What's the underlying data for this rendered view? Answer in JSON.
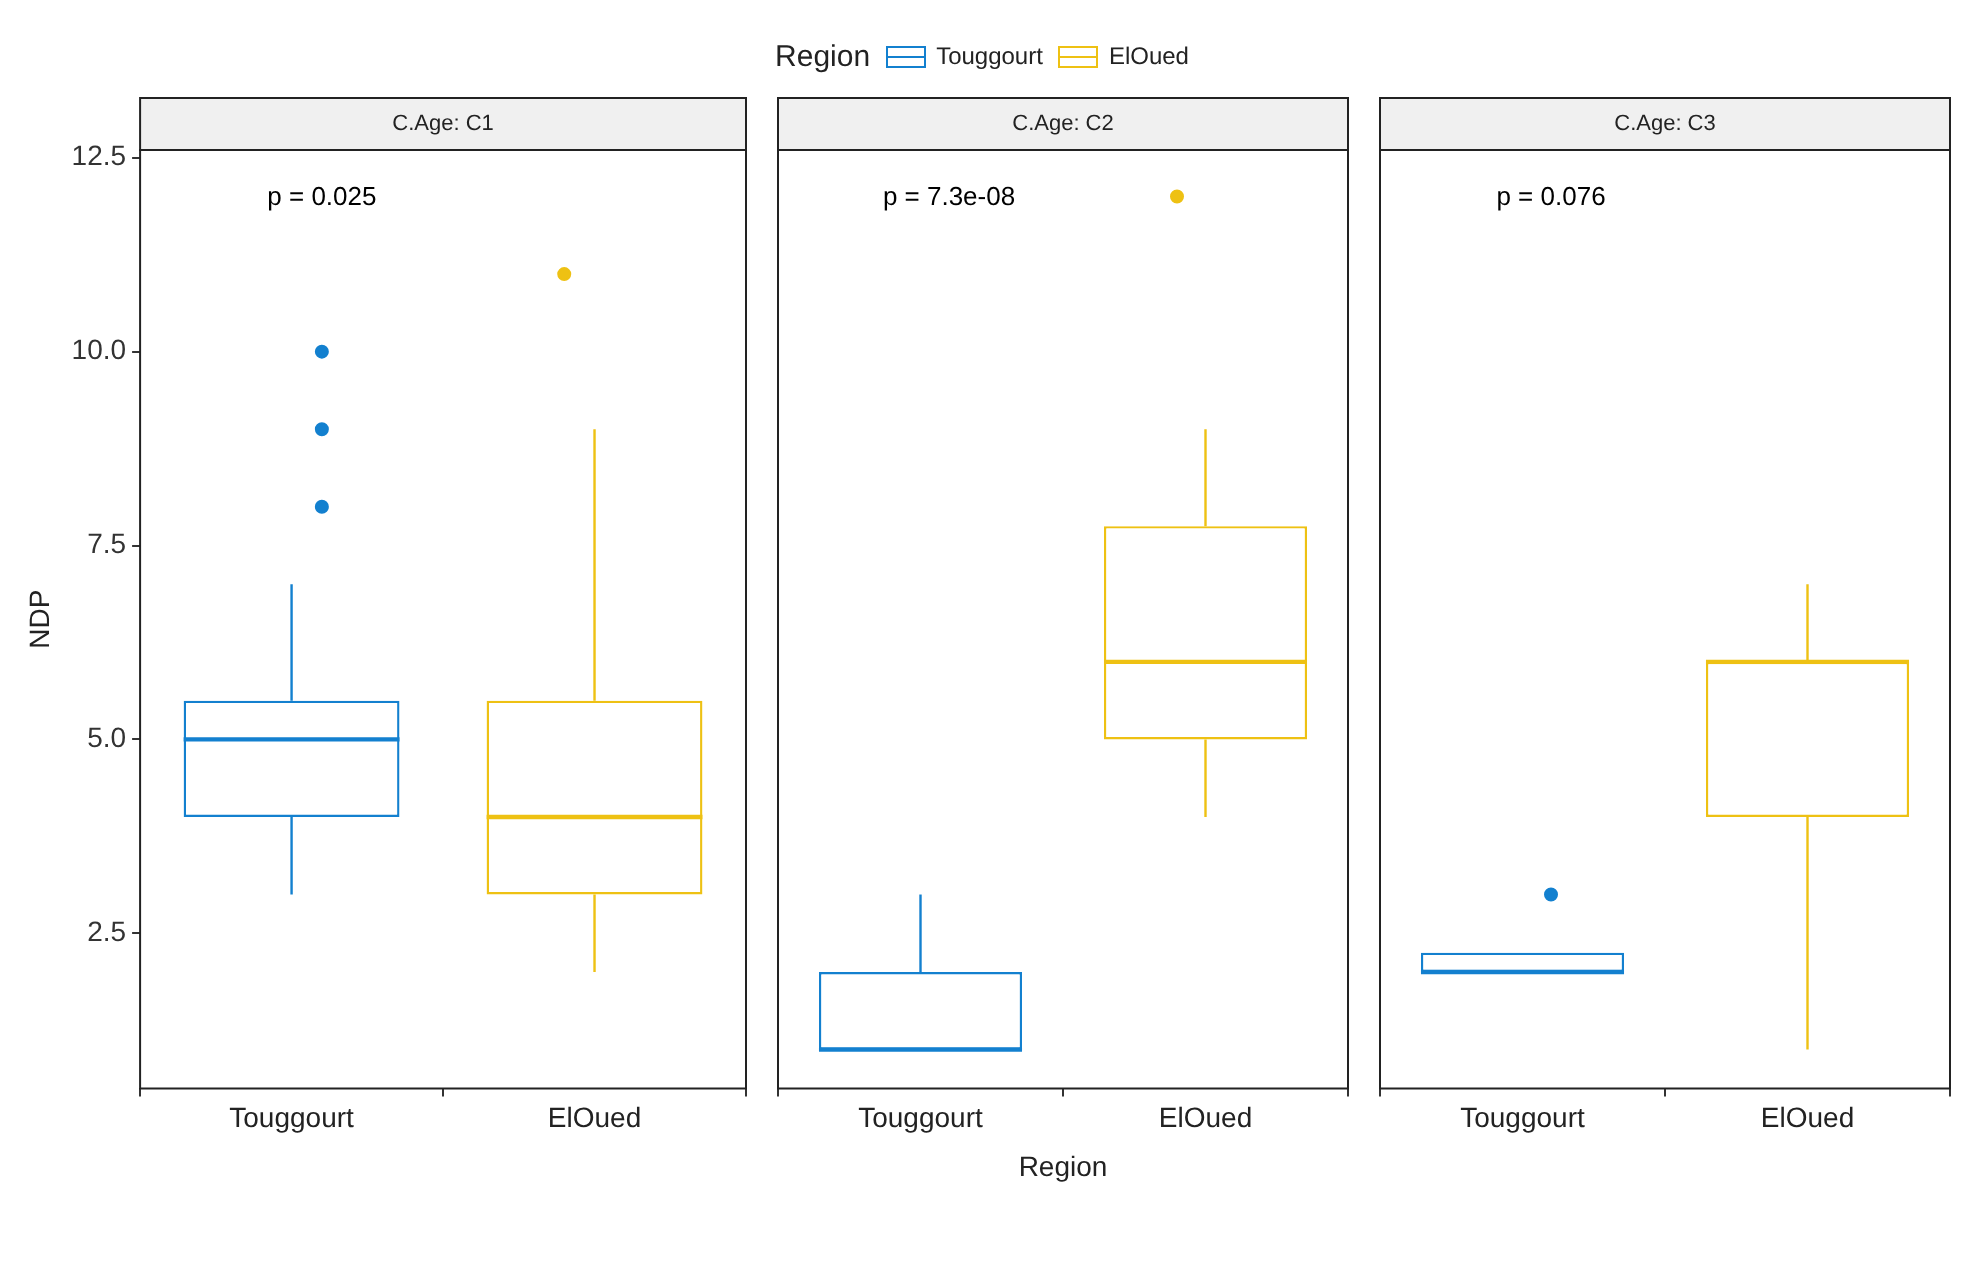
{
  "chart_data": [
    {
      "type": "box",
      "title": "C.Age: C1",
      "ylabel": "NDP",
      "legend_title": "Region",
      "legend": "top",
      "categories": [
        "Touggourt",
        "ElOued"
      ],
      "ylim": [
        0.5,
        12.6
      ],
      "yticks": [
        {
          "value": 2.5,
          "label": "2.5"
        },
        {
          "value": 5,
          "label": "5.0"
        },
        {
          "value": 7.5,
          "label": "7.5"
        },
        {
          "value": 10,
          "label": "10.0"
        },
        {
          "value": 12.5,
          "label": "12.5"
        }
      ],
      "grid": false,
      "annotations": [
        "p = 0.025"
      ],
      "series": [
        {
          "name": "Touggourt",
          "color": "#1380cf",
          "boxes": [
            {
              "low": 3,
              "q1": 4,
              "median": 5,
              "q3": 5.5,
              "high": 7,
              "outliers": [
                8,
                9,
                10
              ]
            },
            null
          ]
        },
        {
          "name": "ElOued",
          "color": "#eec113",
          "boxes": [
            null,
            {
              "low": 2,
              "q1": 3,
              "median": 4,
              "q3": 5.5,
              "high": 9,
              "outliers": [
                11
              ]
            }
          ]
        }
      ]
    },
    {
      "type": "box",
      "title": "C.Age: C2",
      "xlabel": "Region",
      "categories": [
        "Touggourt",
        "ElOued"
      ],
      "ylim": [
        0.5,
        12.6
      ],
      "tick_labels": "x",
      "grid": false,
      "annotations": [
        "p = 7.3e-08"
      ],
      "series": [
        {
          "color": "#1380cf",
          "boxes": [
            {
              "low": 1,
              "q1": 1,
              "median": 1,
              "q3": 2,
              "high": 3
            },
            null
          ]
        },
        {
          "color": "#eec113",
          "boxes": [
            null,
            {
              "low": 4,
              "q1": 5,
              "median": 6,
              "q3": 7.75,
              "high": 9,
              "outliers": [
                12
              ]
            }
          ]
        }
      ]
    },
    {
      "type": "box",
      "title": "C.Age: C3",
      "categories": [
        "Touggourt",
        "ElOued"
      ],
      "ylim": [
        0.5,
        12.6
      ],
      "tick_labels": "x",
      "grid": false,
      "annotations": [
        "p = 0.076"
      ],
      "series": [
        {
          "color": "#1380cf",
          "boxes": [
            {
              "low": 2,
              "q1": 2,
              "median": 2,
              "q3": 2.25,
              "high": 2.25,
              "outliers": [
                3
              ]
            },
            null
          ]
        },
        {
          "color": "#eec113",
          "boxes": [
            null,
            {
              "low": 1,
              "q1": 4,
              "median": 6,
              "q3": 6,
              "high": 7
            }
          ]
        }
      ]
    }
  ]
}
